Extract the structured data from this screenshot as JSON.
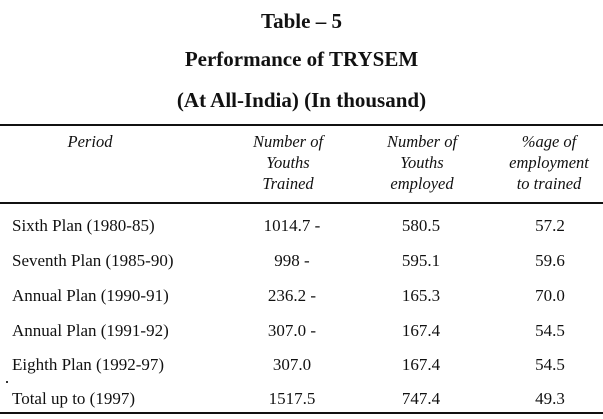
{
  "title": {
    "line1": "Table – 5",
    "line2": "Performance of TRYSEM",
    "line3": "(At All-India) (In thousand)"
  },
  "table": {
    "columns": [
      "Period",
      "Number of\nYouths\nTrained",
      "Number of\nYouths\nemployed",
      "%age of\nemployment\nto trained"
    ],
    "rows": [
      {
        "period": "Sixth Plan (1980-85)",
        "trained": "1014.7 -",
        "employed": "580.5",
        "pct": "57.2"
      },
      {
        "period": "Seventh Plan (1985-90)",
        "trained": "998 -",
        "employed": "595.1",
        "pct": "59.6"
      },
      {
        "period": "Annual Plan (1990-91)",
        "trained": "236.2 -",
        "employed": "165.3",
        "pct": "70.0"
      },
      {
        "period": "Annual Plan (1991-92)",
        "trained": "307.0 -",
        "employed": "167.4",
        "pct": "54.5"
      },
      {
        "period": "Eighth Plan (1992-97)",
        "trained": "307.0",
        "employed": "167.4",
        "pct": "54.5"
      },
      {
        "period": "Total up to (1997)",
        "trained": "1517.5",
        "employed": "747.4",
        "pct": "49.3"
      }
    ]
  }
}
